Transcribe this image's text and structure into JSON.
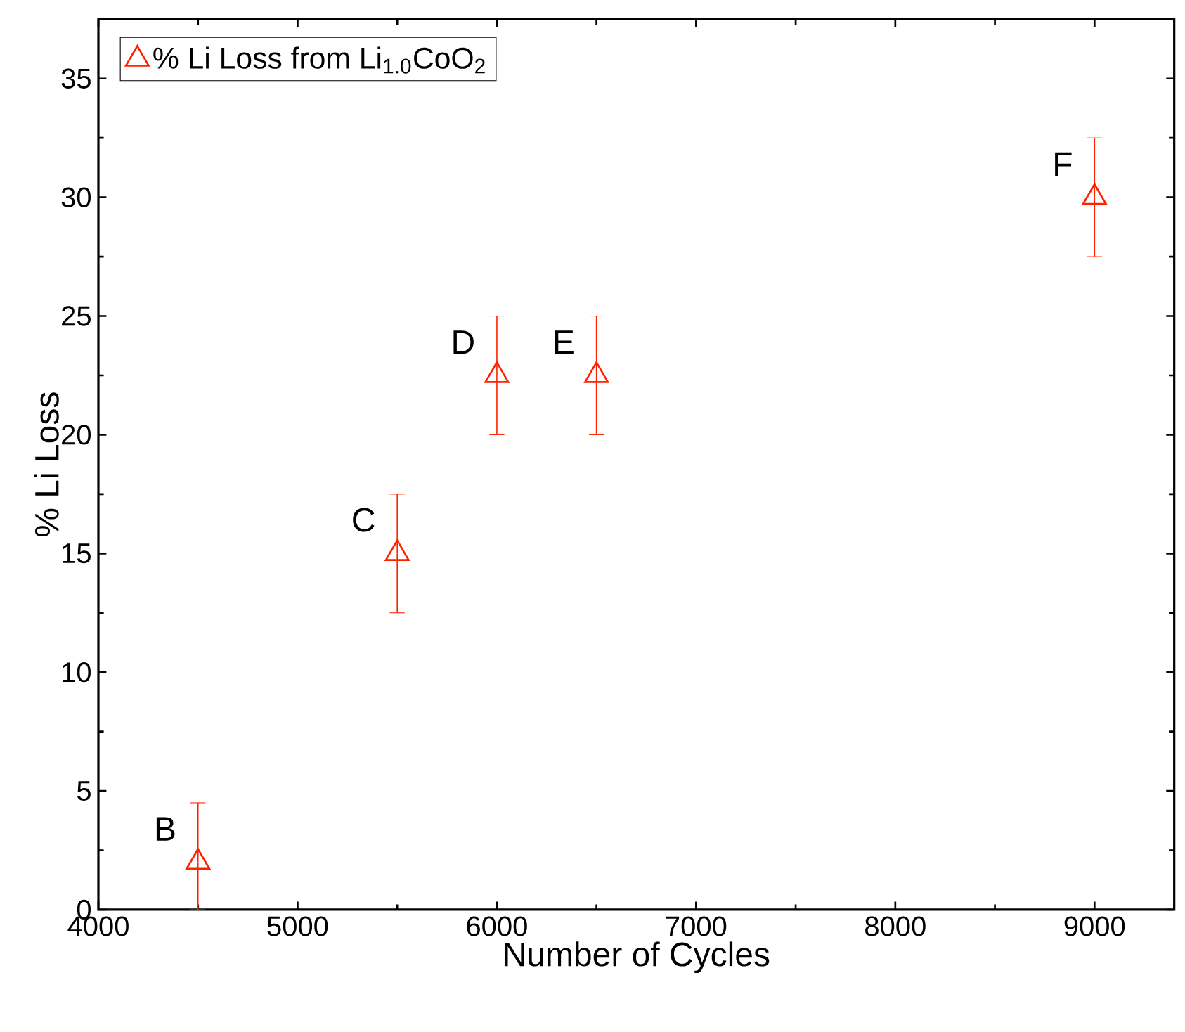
{
  "chart_data": {
    "type": "scatter",
    "xlabel": "Number of Cycles",
    "ylabel": "% Li Loss",
    "x": [
      4500,
      5500,
      6000,
      6500,
      9000
    ],
    "series": [
      {
        "name": "% Li Loss from Li$_{1.0}$CoO$_{2}$",
        "color": "#ff2200",
        "values": [
          2,
          15,
          22.5,
          22.5,
          30
        ],
        "errors": [
          [
            0,
            4.5
          ],
          2.5,
          2.5,
          2.5,
          2.5
        ]
      }
    ],
    "marker": "triangle",
    "legend": "top left",
    "grid": false,
    "xlim": [
      4000,
      9400
    ],
    "ylim": [
      0,
      37.5
    ],
    "xticks": [
      4000,
      5000,
      6000,
      7000,
      8000,
      9000
    ],
    "yticks": [
      0,
      5,
      10,
      15,
      20,
      25,
      30,
      35
    ],
    "annotations": [
      {
        "text": "B",
        "x": 4500,
        "y": 2
      },
      {
        "text": "C",
        "x": 5500,
        "y": 15
      },
      {
        "text": "D",
        "x": 6000,
        "y": 22.5
      },
      {
        "text": "E",
        "x": 6500,
        "y": 22.5
      },
      {
        "text": "F",
        "x": 9000,
        "y": 30
      }
    ]
  }
}
